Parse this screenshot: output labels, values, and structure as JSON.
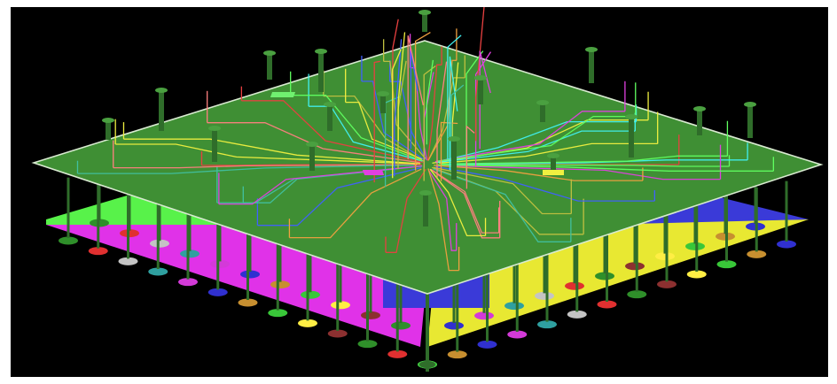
{
  "scene": {
    "subject": "3d-package-render",
    "colors": {
      "background": "#000000",
      "frame": "#ffffff",
      "substrate": "#3f8f34",
      "substrate_edge": "#d8ead0",
      "ground_magenta": "#e032e8",
      "ground_yellow": "#e8e832",
      "ground_green": "#58f24a",
      "ground_blue": "#3a3ad8",
      "trace_colors": [
        "#e84040",
        "#f0f040",
        "#40f0f0",
        "#4060ff",
        "#e040e0",
        "#f0a040",
        "#60ff60",
        "#ff8080",
        "#c0c040",
        "#40c0a0"
      ],
      "via": "#2f6d2a",
      "bump_colors": [
        "#2f8f2a",
        "#39c739",
        "#d33ad8",
        "#e03030",
        "#ffee44",
        "#3030d0",
        "#c4c4c4",
        "#8c3030",
        "#c78f30",
        "#2fa0a0"
      ]
    }
  }
}
